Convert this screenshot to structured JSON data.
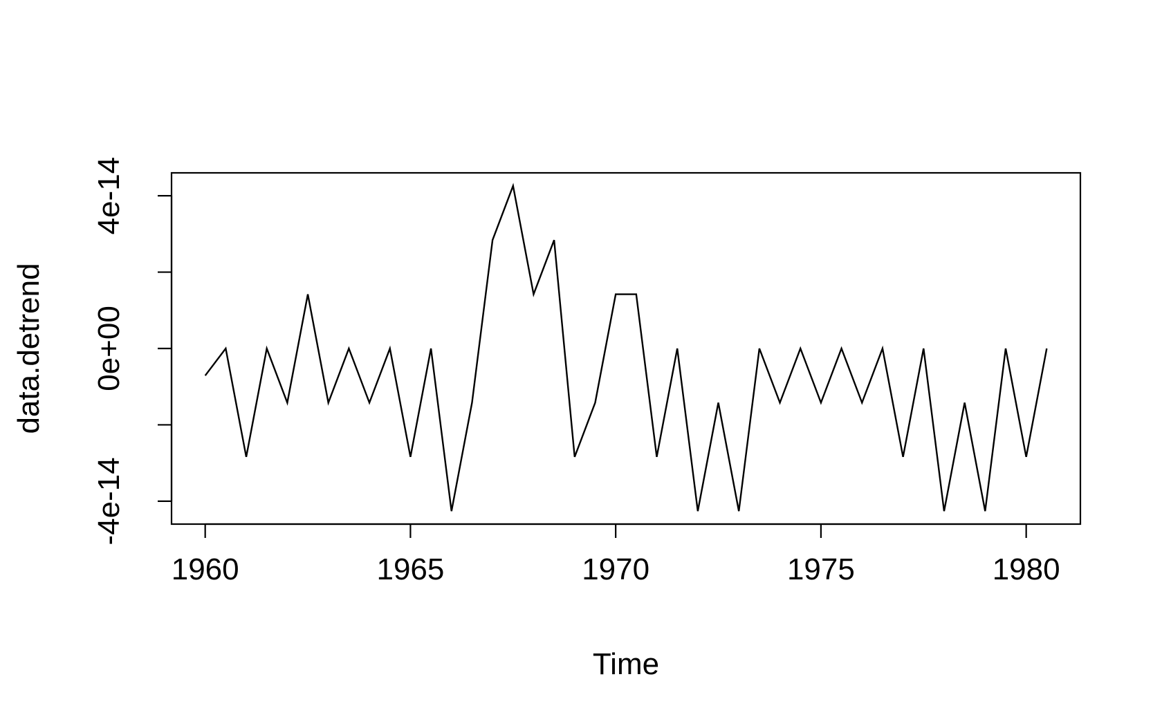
{
  "chart_data": {
    "type": "line",
    "x_label": "Time",
    "y_label": "data.detrend",
    "x": [
      1960,
      1960.5,
      1961,
      1961.5,
      1962,
      1962.5,
      1963,
      1963.5,
      1964,
      1964.5,
      1965,
      1965.5,
      1966,
      1966.5,
      1967,
      1967.5,
      1968,
      1968.5,
      1969,
      1969.5,
      1970,
      1970.5,
      1971,
      1971.5,
      1972,
      1972.5,
      1973,
      1973.5,
      1974,
      1974.5,
      1975,
      1975.5,
      1976,
      1976.5,
      1977,
      1977.5,
      1978,
      1978.5,
      1979,
      1979.5,
      1980,
      1980.5
    ],
    "values": [
      -7.1e-15,
      0,
      -2.84e-14,
      0,
      -1.42e-14,
      1.42e-14,
      -1.42e-14,
      0,
      -1.42e-14,
      0,
      -2.84e-14,
      0,
      -4.26e-14,
      -1.42e-14,
      2.84e-14,
      4.26e-14,
      1.42e-14,
      2.84e-14,
      -2.84e-14,
      -1.42e-14,
      1.42e-14,
      1.42e-14,
      -2.84e-14,
      0,
      -4.26e-14,
      -1.42e-14,
      -4.26e-14,
      0,
      -1.42e-14,
      0,
      -1.42e-14,
      0,
      -1.42e-14,
      0,
      -2.84e-14,
      0,
      -4.26e-14,
      -1.42e-14,
      -4.26e-14,
      0,
      -2.84e-14,
      0
    ],
    "color": "#000000",
    "xlim": [
      1959.18,
      1981.32
    ],
    "xticks": [
      1960,
      1965,
      1970,
      1975,
      1980
    ],
    "ylim": [
      -4.6e-14,
      4.6e-14
    ],
    "yticks": [
      {
        "value": -4e-14,
        "label": "-4e-14"
      },
      {
        "value": -2e-14,
        "label": null
      },
      {
        "value": 0,
        "label": "0e+00"
      },
      {
        "value": 2e-14,
        "label": null
      },
      {
        "value": 4e-14,
        "label": "4e-14"
      }
    ]
  }
}
